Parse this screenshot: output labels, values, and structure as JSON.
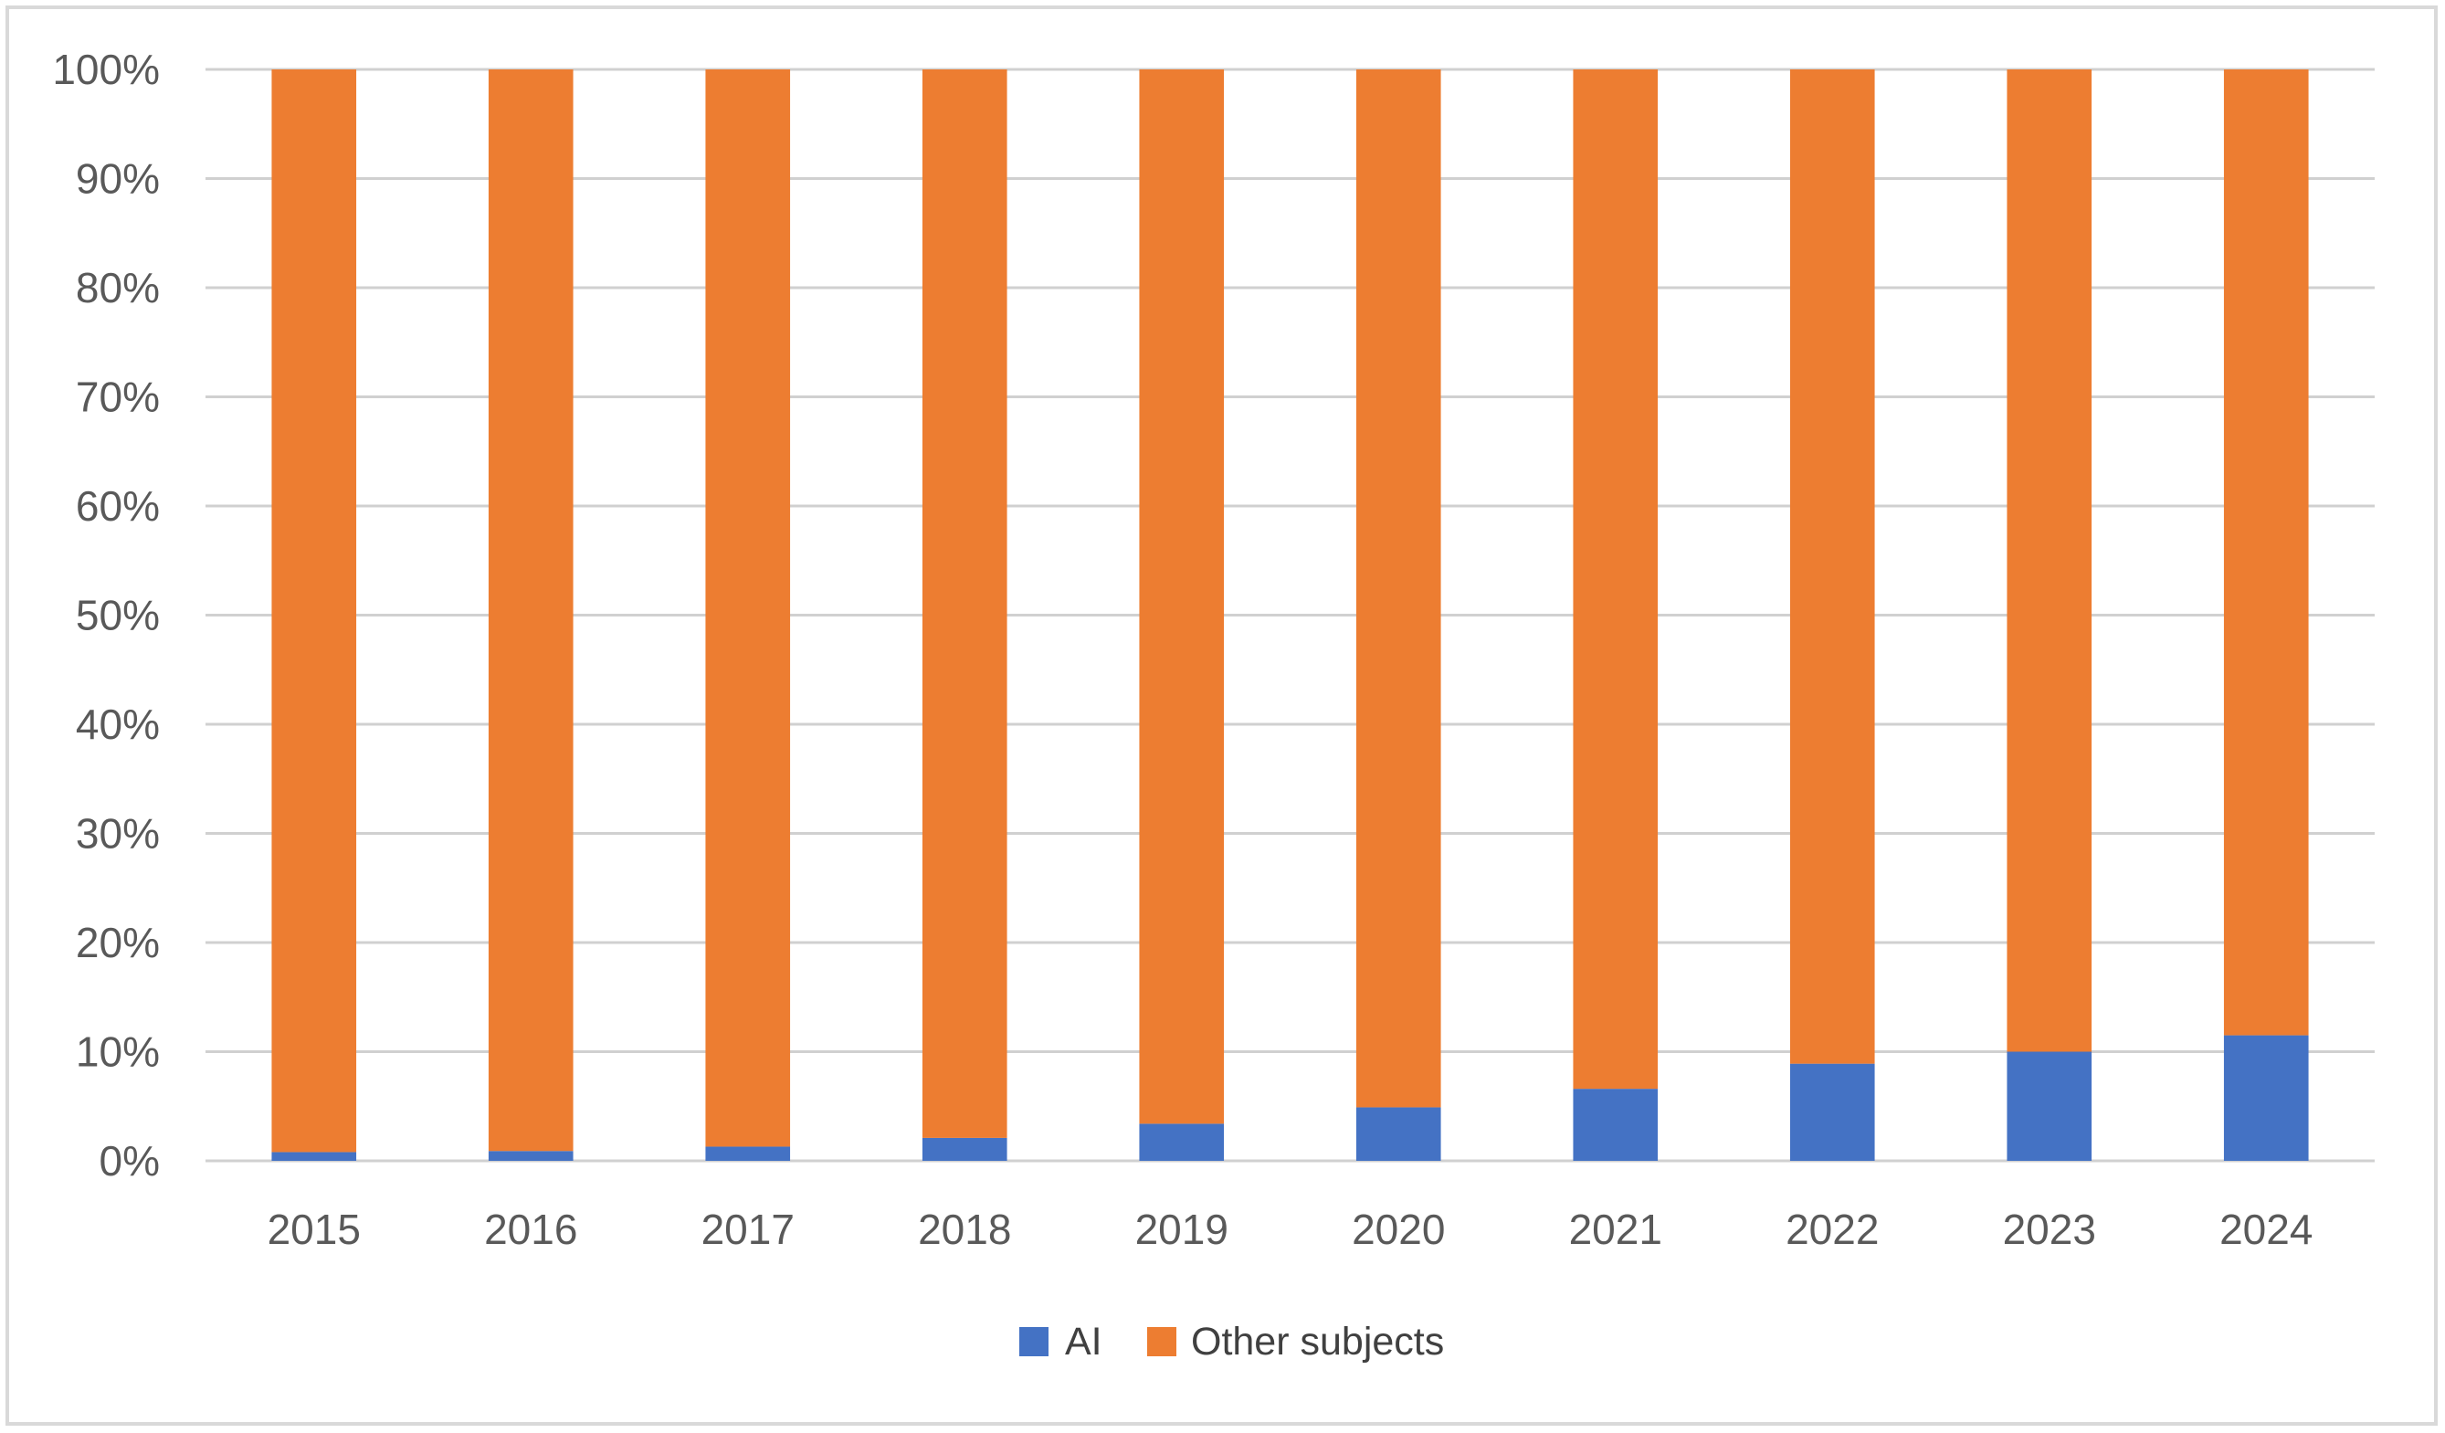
{
  "chart_data": {
    "type": "bar",
    "stacked": true,
    "normalized": true,
    "categories": [
      "2015",
      "2016",
      "2017",
      "2018",
      "2019",
      "2020",
      "2021",
      "2022",
      "2023",
      "2024"
    ],
    "series": [
      {
        "name": "AI",
        "color": "#4472C4",
        "values": [
          0.8,
          0.9,
          1.3,
          2.1,
          3.4,
          4.9,
          6.6,
          8.9,
          10.0,
          11.5
        ]
      },
      {
        "name": "Other subjects",
        "color": "#ED7D31",
        "values": [
          99.2,
          99.1,
          98.7,
          97.9,
          96.6,
          95.1,
          93.4,
          91.1,
          90.0,
          88.5
        ]
      }
    ],
    "yticks": [
      "0%",
      "10%",
      "20%",
      "30%",
      "40%",
      "50%",
      "60%",
      "70%",
      "80%",
      "90%",
      "100%"
    ],
    "ylim": [
      0,
      100
    ],
    "title": "",
    "xlabel": "",
    "ylabel": "",
    "grid": true,
    "legend_position": "bottom"
  }
}
